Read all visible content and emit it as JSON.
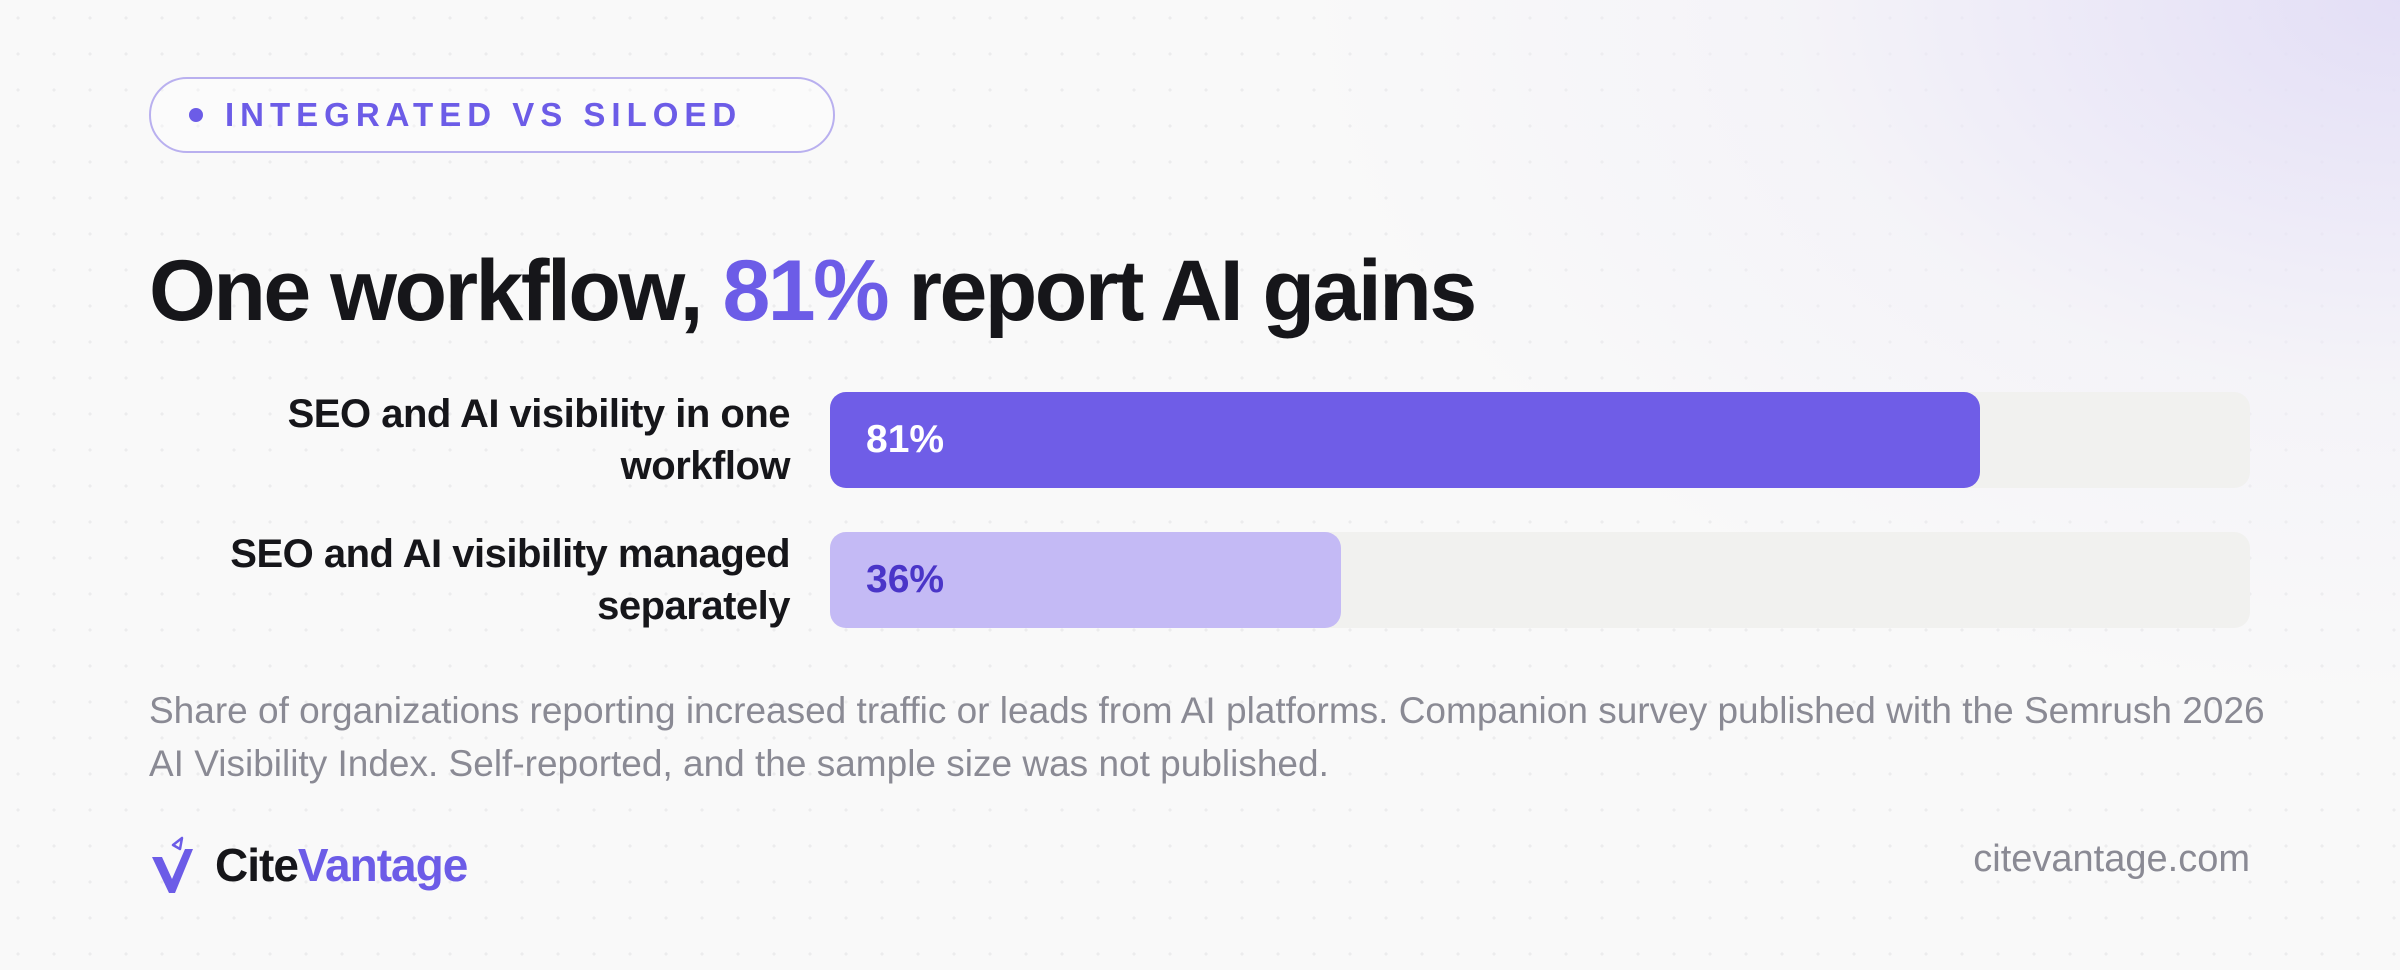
{
  "badge": {
    "label": "INTEGRATED VS SILOED"
  },
  "title": {
    "before": "One workflow, ",
    "highlight": "81%",
    "after": " report AI gains"
  },
  "colors": {
    "accent": "#6c5ce7",
    "bar_primary": "#6f5de7",
    "bar_secondary": "#c4baf5",
    "label_primary": "#ffffff",
    "label_secondary": "#4a35c8",
    "track": "#f1f1ef"
  },
  "chart_data": {
    "type": "bar",
    "orientation": "horizontal",
    "categories": [
      "SEO and AI visibility in one workflow",
      "SEO and AI visibility managed separately"
    ],
    "values": [
      81,
      36
    ],
    "value_labels": [
      "81%",
      "36%"
    ],
    "unit": "%",
    "xlim": [
      0,
      100
    ],
    "grid": false,
    "legend": false
  },
  "footnote": "Share of organizations reporting increased traffic or leads from AI platforms. Companion survey published with the Semrush 2026 AI Visibility Index. Self-reported, and the sample size was not published.",
  "brand": {
    "part1": "Cite",
    "part2": "Vantage",
    "logo_icon": "v-checkmark-logo-icon"
  },
  "website": "citevantage.com"
}
